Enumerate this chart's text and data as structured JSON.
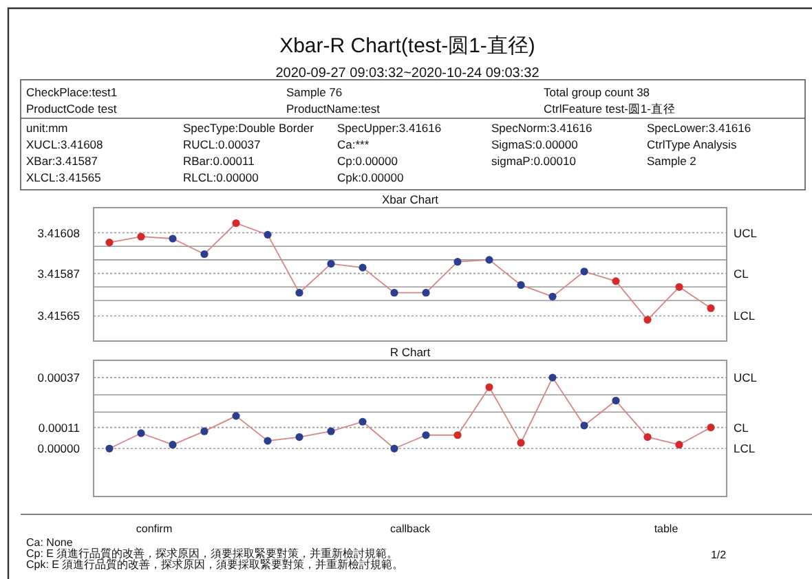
{
  "chart_data": [
    {
      "type": "other",
      "title": "Xbar-R Chart(test-圆1-直径)",
      "subtitle": "2020-09-27 09:03:32~2020-10-24 09:03:32",
      "annotations": [
        "CheckPlace:test1",
        "Sample  76",
        "Total group count  38",
        "ProductCode  test",
        "ProductName:test",
        "CtrlFeature  test-圆1-直径",
        "unit:mm",
        "SpecType:Double Border",
        "SpecUpper:3.41616",
        "SpecNorm:3.41616",
        "SpecLower:3.41616",
        "XUCL:3.41608",
        "RUCL:0.00037",
        "Ca:***",
        "SigmaS:0.00000",
        "CtrlType  Analysis",
        "XBar:3.41587",
        "RBar:0.00011",
        "Cp:0.00000",
        "sigmaP:0.00010",
        "Sample  2",
        "XLCL:3.41565",
        "RLCL:0.00000",
        "Cpk:0.00000"
      ]
    },
    {
      "type": "line",
      "title": "Xbar Chart",
      "marker": "circle",
      "categories": [
        null,
        null,
        null,
        null,
        null,
        null,
        null,
        null,
        null,
        null,
        null,
        null,
        null,
        null,
        null,
        null,
        null,
        null,
        null,
        null
      ],
      "series": [
        {
          "color": "#d88585",
          "colors": [
            "#d42a2a",
            "#d42a2a",
            "#2a3f8f",
            "#2a3f8f",
            "#d42a2a",
            "#2a3f8f",
            "#2a3f8f",
            "#2a3f8f",
            "#2a3f8f",
            "#2a3f8f",
            "#2a3f8f",
            "#2a3f8f",
            "#2a3f8f",
            "#2a3f8f",
            "#2a3f8f",
            "#2a3f8f",
            "#d42a2a",
            "#d42a2a",
            "#d42a2a",
            "#d42a2a"
          ],
          "values": [
            3.41603,
            3.41606,
            3.41605,
            3.41597,
            3.41613,
            3.41607,
            3.41577,
            3.41592,
            3.4159,
            3.41577,
            3.41577,
            3.41593,
            3.41594,
            3.41581,
            3.41575,
            3.41588,
            3.41583,
            3.41563,
            3.4158,
            3.41569
          ]
        }
      ],
      "ylim": [
        3.41552,
        3.41621
      ],
      "yticks": [
        3.41565,
        3.41587,
        3.41608
      ],
      "ref_lines": [
        {
          "axis": "y",
          "value": 3.41608,
          "label": "UCL",
          "line_style": "dotted"
        },
        {
          "axis": "y",
          "value": 3.41587,
          "label": "CL",
          "line_style": "dotted"
        },
        {
          "axis": "y",
          "value": 3.41565,
          "label": "LCL",
          "line_style": "dotted"
        },
        {
          "axis": "y",
          "value": 3.41601,
          "line_style": "solid"
        },
        {
          "axis": "y",
          "value": 3.41594,
          "line_style": "solid"
        },
        {
          "axis": "y",
          "value": 3.4158,
          "line_style": "solid"
        },
        {
          "axis": "y",
          "value": 3.41573,
          "line_style": "solid"
        }
      ]
    },
    {
      "type": "line",
      "title": "R Chart",
      "marker": "circle",
      "categories": [
        null,
        null,
        null,
        null,
        null,
        null,
        null,
        null,
        null,
        null,
        null,
        null,
        null,
        null,
        null,
        null,
        null,
        null,
        null,
        null
      ],
      "series": [
        {
          "color": "#d88585",
          "colors": [
            "#2a3f8f",
            "#2a3f8f",
            "#2a3f8f",
            "#2a3f8f",
            "#2a3f8f",
            "#2a3f8f",
            "#2a3f8f",
            "#2a3f8f",
            "#2a3f8f",
            "#2a3f8f",
            "#2a3f8f",
            "#d42a2a",
            "#d42a2a",
            "#d42a2a",
            "#2a3f8f",
            "#2a3f8f",
            "#2a3f8f",
            "#d42a2a",
            "#d42a2a",
            "#d42a2a"
          ],
          "values": [
            0,
            8e-05,
            2e-05,
            9e-05,
            0.00017,
            4e-05,
            6e-05,
            9e-05,
            0.00014,
            0,
            7e-05,
            7e-05,
            0.00032,
            3e-05,
            0.00037,
            0.00012,
            0.00025,
            6e-05,
            2e-05,
            0.00011
          ]
        }
      ],
      "ylim": [
        -0.00025,
        0.00046
      ],
      "yticks": [
        {
          "value": 0,
          "label": "0.00000"
        },
        0.00011,
        0.00037
      ],
      "ref_lines": [
        {
          "axis": "y",
          "value": 0.00037,
          "label": "UCL",
          "line_style": "dotted"
        },
        {
          "axis": "y",
          "value": 0.00011,
          "label": "CL",
          "line_style": "dotted"
        },
        {
          "axis": "y",
          "value": 0,
          "label": "LCL",
          "line_style": "dotted"
        },
        {
          "axis": "y",
          "value": 0.00028,
          "line_style": "solid"
        },
        {
          "axis": "y",
          "value": 0.00019,
          "line_style": "solid"
        }
      ]
    },
    {
      "type": "other",
      "annotations": [
        "confirm",
        "callback",
        "table",
        "Ca:  None",
        "Cp:  E 須進行品質的改善，探求原因，須要採取緊要對策，并重新檢討規範。",
        "Cpk: E 須進行品質的改善，探求原因，須要採取緊要對策，并重新檢討規範。",
        "1/2"
      ]
    }
  ]
}
